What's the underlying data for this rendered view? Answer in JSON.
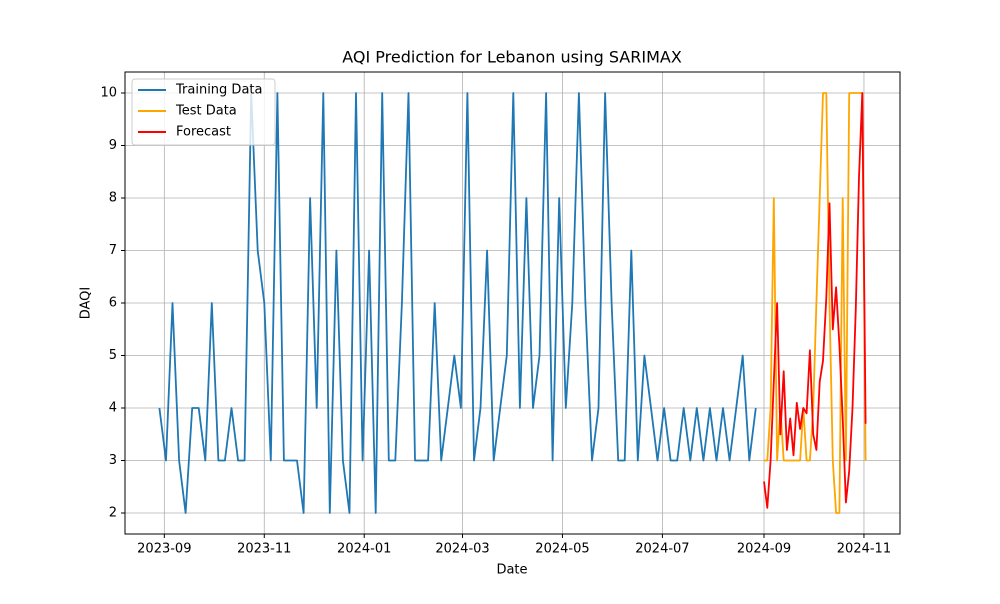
{
  "chart_data": {
    "type": "line",
    "title": "AQI Prediction for Lebanon using SARIMAX",
    "xlabel": "Date",
    "ylabel": "DAQI",
    "xlim": [
      19577,
      20050
    ],
    "ylim": [
      1.6,
      10.4
    ],
    "xticks": [
      {
        "value": 19601,
        "label": "2023-09"
      },
      {
        "value": 19662,
        "label": "2023-11"
      },
      {
        "value": 19723,
        "label": "2024-01"
      },
      {
        "value": 19783,
        "label": "2024-03"
      },
      {
        "value": 19844,
        "label": "2024-05"
      },
      {
        "value": 19905,
        "label": "2024-07"
      },
      {
        "value": 19967,
        "label": "2024-09"
      },
      {
        "value": 20028,
        "label": "2024-11"
      }
    ],
    "yticks": [
      2,
      3,
      4,
      5,
      6,
      7,
      8,
      9,
      10
    ],
    "grid": true,
    "legend": "upper-left",
    "series": [
      {
        "name": "Training Data",
        "color": "#1f77b4",
        "x": [
          19598,
          19602,
          19606,
          19610,
          19614,
          19618,
          19622,
          19626,
          19630,
          19634,
          19638,
          19642,
          19646,
          19650,
          19654,
          19658,
          19662,
          19666,
          19670,
          19674,
          19678,
          19682,
          19686,
          19690,
          19694,
          19698,
          19702,
          19706,
          19710,
          19714,
          19718,
          19722,
          19726,
          19730,
          19734,
          19738,
          19742,
          19746,
          19750,
          19754,
          19758,
          19762,
          19766,
          19770,
          19774,
          19778,
          19782,
          19786,
          19790,
          19794,
          19798,
          19802,
          19806,
          19810,
          19814,
          19818,
          19822,
          19826,
          19830,
          19834,
          19838,
          19842,
          19846,
          19850,
          19854,
          19858,
          19862,
          19866,
          19870,
          19874,
          19878,
          19882,
          19886,
          19890,
          19894,
          19898,
          19902,
          19906,
          19910,
          19914,
          19918,
          19922,
          19926,
          19930,
          19934,
          19938,
          19942,
          19946,
          19950,
          19954,
          19958,
          19962
        ],
        "values": [
          4,
          3,
          6,
          3,
          2,
          4,
          4,
          3,
          6,
          3,
          3,
          4,
          3,
          3,
          10,
          7,
          6,
          3,
          10,
          3,
          3,
          3,
          2,
          8,
          4,
          10,
          2,
          7,
          3,
          2,
          10,
          3,
          7,
          2,
          10,
          3,
          3,
          6,
          10,
          3,
          3,
          3,
          6,
          3,
          4,
          5,
          4,
          10,
          3,
          4,
          7,
          3,
          4,
          5,
          10,
          4,
          8,
          4,
          5,
          10,
          3,
          8,
          4,
          6,
          10,
          6,
          3,
          4,
          10,
          6,
          3,
          3,
          7,
          3,
          5,
          4,
          3,
          4,
          3,
          3,
          4,
          3,
          4,
          3,
          4,
          3,
          4,
          3,
          4,
          5,
          3,
          4
        ]
      },
      {
        "name": "Test Data",
        "color": "#ffa500",
        "x": [
          19967,
          19969,
          19971,
          19973,
          19975,
          19977,
          19979,
          19981,
          19983,
          19985,
          19987,
          19989,
          19991,
          19993,
          19995,
          19997,
          19999,
          20001,
          20003,
          20005,
          20007,
          20009,
          20011,
          20013,
          20015,
          20017,
          20019,
          20021,
          20023,
          20025,
          20027,
          20029
        ],
        "values": [
          3,
          3,
          4,
          8,
          3,
          4,
          3,
          3,
          3,
          3,
          3,
          3,
          4,
          3,
          3,
          4,
          6,
          8,
          10,
          10,
          6,
          3,
          2,
          2,
          8,
          3,
          10,
          10,
          10,
          10,
          10,
          3
        ]
      },
      {
        "name": "Forecast",
        "color": "#ff0000",
        "x": [
          19967,
          19969,
          19971,
          19973,
          19975,
          19977,
          19979,
          19981,
          19983,
          19985,
          19987,
          19989,
          19991,
          19993,
          19995,
          19997,
          19999,
          20001,
          20003,
          20005,
          20007,
          20009,
          20011,
          20013,
          20015,
          20017,
          20019,
          20021,
          20023,
          20025,
          20027,
          20029
        ],
        "values": [
          2.6,
          2.1,
          3,
          4.5,
          6,
          3.5,
          4.7,
          3.2,
          3.8,
          3.1,
          4.1,
          3.6,
          4,
          3.9,
          5.1,
          3.5,
          3.2,
          4.5,
          4.9,
          6.1,
          7.9,
          5.5,
          6.3,
          5.2,
          3.8,
          2.2,
          2.8,
          4,
          5.9,
          8.4,
          10,
          3.7
        ]
      }
    ]
  }
}
